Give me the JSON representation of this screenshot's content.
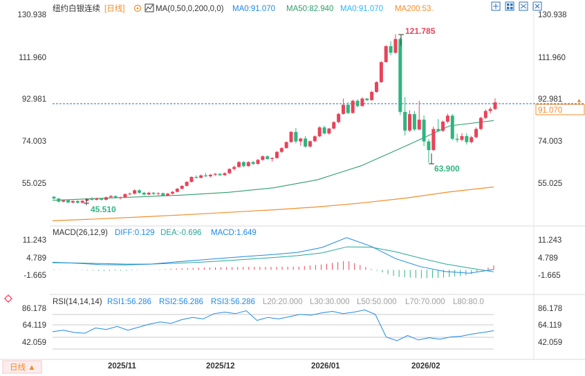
{
  "header": {
    "symbol": "纽约白银连续",
    "period_tag": "[日线]",
    "ma_params": "MA(0,50,0,200,0,0)",
    "ma_items": [
      {
        "label": "MA0:91.070",
        "color": "#1e88e5"
      },
      {
        "label": "MA50:82.940",
        "color": "#2e9e6b"
      },
      {
        "label": "MA0:91.070",
        "color": "#29b6f6"
      },
      {
        "label": "MA200:53.",
        "color": "#f28c28"
      }
    ]
  },
  "toolbar_icons": [
    "expand-icon",
    "grid-icon",
    "grid-alt-icon",
    "close-icon"
  ],
  "price_axis": {
    "ticks": [
      "130.938",
      "111.960",
      "92.981",
      "74.003",
      "55.025"
    ],
    "current": "91.070",
    "current_color": "#f28c28"
  },
  "annotations": {
    "high": "121.785",
    "low_left": "45.510",
    "low_right": "63.900"
  },
  "macd": {
    "title": "MACD(26,12,9)",
    "diff": "DIFF:0.129",
    "dea": "DEA:-0.696",
    "macd": "MACD:1.649",
    "ticks": [
      "11.243",
      "4.789",
      "-1.665"
    ]
  },
  "rsi": {
    "title": "RSI(14,14,14)",
    "items": [
      {
        "label": "RSI1:56.286",
        "color": "#1e88e5"
      },
      {
        "label": "RSI2:56.286",
        "color": "#1e88e5"
      },
      {
        "label": "RSI3:56.286",
        "color": "#1e88e5"
      },
      {
        "label": "L20:20.000",
        "color": "#9e9e9e"
      },
      {
        "label": "L30:30.000",
        "color": "#9e9e9e"
      },
      {
        "label": "L50:50.000",
        "color": "#9e9e9e"
      },
      {
        "label": "L70:70.000",
        "color": "#9e9e9e"
      },
      {
        "label": "L80:80.0",
        "color": "#9e9e9e"
      }
    ],
    "ticks": [
      "86.178",
      "64.119",
      "42.059"
    ]
  },
  "time_axis": {
    "labels": [
      "2025/11",
      "2025/12",
      "2026/01",
      "2026/02"
    ]
  },
  "footer": {
    "period_button": "日线 ▲"
  },
  "colors": {
    "up": "#e8435a",
    "down": "#2fb57f",
    "ma50": "#2e9e6b",
    "ma200": "#f28c28",
    "macd_line": "#1e88e5",
    "dea_line": "#26a69a",
    "rsi": "#1e88e5"
  },
  "chart_data": [
    {
      "type": "candlestick",
      "title": "纽约白银连续 [日线]",
      "ylim": [
        45.51,
        121.785
      ],
      "y_ticks": [
        130.938,
        111.96,
        92.981,
        74.003,
        55.025
      ],
      "x_labels": [
        "2025/11",
        "2025/12",
        "2026/01",
        "2026/02"
      ],
      "ohlc": [
        [
          48.6,
          49.0,
          47.4,
          47.8
        ],
        [
          47.8,
          48.0,
          46.0,
          46.4
        ],
        [
          46.4,
          47.2,
          46.0,
          47.0
        ],
        [
          47.0,
          47.4,
          45.8,
          46.0
        ],
        [
          46.0,
          46.9,
          45.6,
          46.7
        ],
        [
          46.7,
          47.0,
          45.5,
          45.9
        ],
        [
          45.9,
          47.0,
          45.7,
          46.8
        ],
        [
          46.8,
          47.9,
          46.6,
          47.6
        ],
        [
          47.6,
          48.4,
          46.9,
          47.2
        ],
        [
          47.2,
          48.2,
          47.0,
          47.9
        ],
        [
          47.9,
          48.0,
          46.9,
          47.2
        ],
        [
          47.2,
          48.6,
          47.0,
          48.4
        ],
        [
          48.4,
          49.4,
          48.0,
          48.9
        ],
        [
          48.9,
          49.2,
          47.8,
          48.0
        ],
        [
          48.0,
          48.7,
          47.4,
          48.3
        ],
        [
          48.3,
          50.1,
          48.0,
          49.8
        ],
        [
          49.8,
          50.5,
          49.3,
          50.0
        ],
        [
          50.0,
          51.9,
          49.6,
          51.5
        ],
        [
          51.5,
          52.0,
          50.0,
          50.4
        ],
        [
          50.4,
          50.8,
          49.2,
          49.6
        ],
        [
          49.6,
          50.8,
          49.3,
          50.4
        ],
        [
          50.4,
          50.7,
          49.4,
          49.9
        ],
        [
          49.9,
          50.6,
          49.2,
          50.2
        ],
        [
          50.2,
          50.5,
          48.8,
          49.0
        ],
        [
          49.0,
          50.3,
          48.8,
          50.0
        ],
        [
          50.0,
          51.2,
          49.6,
          50.8
        ],
        [
          50.8,
          52.6,
          50.5,
          52.2
        ],
        [
          52.2,
          53.8,
          51.8,
          53.5
        ],
        [
          53.5,
          55.6,
          53.2,
          55.3
        ],
        [
          55.3,
          57.8,
          55.0,
          57.5
        ],
        [
          57.5,
          58.2,
          56.8,
          57.1
        ],
        [
          57.1,
          58.6,
          56.9,
          58.2
        ],
        [
          58.2,
          59.3,
          57.4,
          57.8
        ],
        [
          57.8,
          58.8,
          57.3,
          58.5
        ],
        [
          58.5,
          59.3,
          57.9,
          58.9
        ],
        [
          58.9,
          59.2,
          57.9,
          58.3
        ],
        [
          58.3,
          59.6,
          58.0,
          59.2
        ],
        [
          59.2,
          61.4,
          58.8,
          61.1
        ],
        [
          61.1,
          62.6,
          60.5,
          62.0
        ],
        [
          62.0,
          64.6,
          61.7,
          64.2
        ],
        [
          64.2,
          64.6,
          61.8,
          62.4
        ],
        [
          62.4,
          64.6,
          62.1,
          64.2
        ],
        [
          64.2,
          64.8,
          62.8,
          63.4
        ],
        [
          63.4,
          65.6,
          63.0,
          65.2
        ],
        [
          65.2,
          67.2,
          64.8,
          66.8
        ],
        [
          66.8,
          67.3,
          65.2,
          65.6
        ],
        [
          65.6,
          66.4,
          64.4,
          66.0
        ],
        [
          66.0,
          69.2,
          65.8,
          68.8
        ],
        [
          68.8,
          70.9,
          68.3,
          70.5
        ],
        [
          70.5,
          73.6,
          70.3,
          73.2
        ],
        [
          73.2,
          78.2,
          72.9,
          77.8
        ],
        [
          77.8,
          79.6,
          72.6,
          73.5
        ],
        [
          73.5,
          75.2,
          71.6,
          74.8
        ],
        [
          74.8,
          75.9,
          70.6,
          71.2
        ],
        [
          71.2,
          73.9,
          70.8,
          73.6
        ],
        [
          73.6,
          76.2,
          73.2,
          75.8
        ],
        [
          75.8,
          80.4,
          75.4,
          79.8
        ],
        [
          79.8,
          80.6,
          76.6,
          77.1
        ],
        [
          77.1,
          79.6,
          76.5,
          79.3
        ],
        [
          79.3,
          82.6,
          79.0,
          82.2
        ],
        [
          82.2,
          86.3,
          81.8,
          85.9
        ],
        [
          85.9,
          92.8,
          85.5,
          90.0
        ],
        [
          90.0,
          91.2,
          85.8,
          86.3
        ],
        [
          86.3,
          92.3,
          86.1,
          91.8
        ],
        [
          91.8,
          92.5,
          88.8,
          89.4
        ],
        [
          89.4,
          93.4,
          89.2,
          92.8
        ],
        [
          92.8,
          93.0,
          91.6,
          92.1
        ],
        [
          92.1,
          96.3,
          91.8,
          95.8
        ],
        [
          95.8,
          100.6,
          95.4,
          100.2
        ],
        [
          100.2,
          109.6,
          99.8,
          109.2
        ],
        [
          109.2,
          116.8,
          109.0,
          116.4
        ],
        [
          116.4,
          118.6,
          112.2,
          113.4
        ],
        [
          113.4,
          121.785,
          113.0,
          119.6
        ],
        [
          119.6,
          120.2,
          85.4,
          86.8
        ],
        [
          86.8,
          93.5,
          76.2,
          78.4
        ],
        [
          78.4,
          87.6,
          77.8,
          85.8
        ],
        [
          85.8,
          87.2,
          78.2,
          78.9
        ],
        [
          78.9,
          91.8,
          78.5,
          83.3
        ],
        [
          83.3,
          85.2,
          71.4,
          73.5
        ],
        [
          73.5,
          74.5,
          63.9,
          69.6
        ],
        [
          69.6,
          80.2,
          69.2,
          79.1
        ],
        [
          79.1,
          83.6,
          77.6,
          78.3
        ],
        [
          78.3,
          82.9,
          77.8,
          82.4
        ],
        [
          82.4,
          86.0,
          81.7,
          85.1
        ],
        [
          85.1,
          85.8,
          74.0,
          74.7
        ],
        [
          74.7,
          77.0,
          73.1,
          74.2
        ],
        [
          74.2,
          77.2,
          73.6,
          75.9
        ],
        [
          75.9,
          77.2,
          72.1,
          73.2
        ],
        [
          73.2,
          76.0,
          72.6,
          75.4
        ],
        [
          75.4,
          79.8,
          74.9,
          79.1
        ],
        [
          79.1,
          84.6,
          78.6,
          84.1
        ],
        [
          84.1,
          87.9,
          83.6,
          87.2
        ],
        [
          87.2,
          89.0,
          86.1,
          88.1
        ],
        [
          88.1,
          92.9,
          87.6,
          91.07
        ]
      ],
      "series": [
        {
          "name": "MA50",
          "values": [
            47.0,
            47.8,
            48.6,
            49.4,
            50.6,
            52.6,
            56.2,
            62.6,
            71.4,
            80.5,
            82.9
          ]
        },
        {
          "name": "MA200",
          "values": [
            37.8,
            38.6,
            39.5,
            40.5,
            41.6,
            42.7,
            44.0,
            45.8,
            48.0,
            50.8,
            53.0
          ]
        }
      ]
    },
    {
      "type": "line",
      "title": "MACD(26,12,9)",
      "y_ticks": [
        11.243,
        4.789,
        -1.665
      ],
      "series": [
        {
          "name": "DIFF",
          "values": [
            2.8,
            2.4,
            1.9,
            1.8,
            2.1,
            2.9,
            3.6,
            4.3,
            5.0,
            5.6,
            6.4,
            8.2,
            11.8,
            8.6,
            4.1,
            1.2,
            -0.6,
            -1.2,
            0.129
          ]
        },
        {
          "name": "DEA",
          "values": [
            2.6,
            2.5,
            2.3,
            2.1,
            2.1,
            2.4,
            2.8,
            3.3,
            3.9,
            4.5,
            5.2,
            6.2,
            8.4,
            8.3,
            6.6,
            4.3,
            2.2,
            0.7,
            -0.696
          ]
        },
        {
          "name": "MACD",
          "values": [
            0.2,
            -0.1,
            -0.4,
            -0.3,
            0.0,
            0.5,
            0.8,
            1.0,
            1.1,
            1.1,
            1.2,
            2.0,
            3.4,
            0.3,
            -2.5,
            -3.1,
            -2.8,
            -1.9,
            1.649
          ]
        }
      ]
    },
    {
      "type": "line",
      "title": "RSI(14,14,14)",
      "y_ticks": [
        86.178,
        64.119,
        42.059
      ],
      "series": [
        {
          "name": "RSI1",
          "values": [
            55,
            57,
            54,
            53,
            60,
            58,
            62,
            57,
            61,
            65,
            68,
            66,
            71,
            74,
            72,
            79,
            81,
            79,
            83,
            70,
            74,
            72,
            75,
            78,
            77,
            80,
            82,
            79,
            81,
            84,
            78,
            48,
            43,
            50,
            44,
            47,
            45,
            48,
            49,
            52,
            54,
            56.286
          ]
        }
      ]
    }
  ]
}
